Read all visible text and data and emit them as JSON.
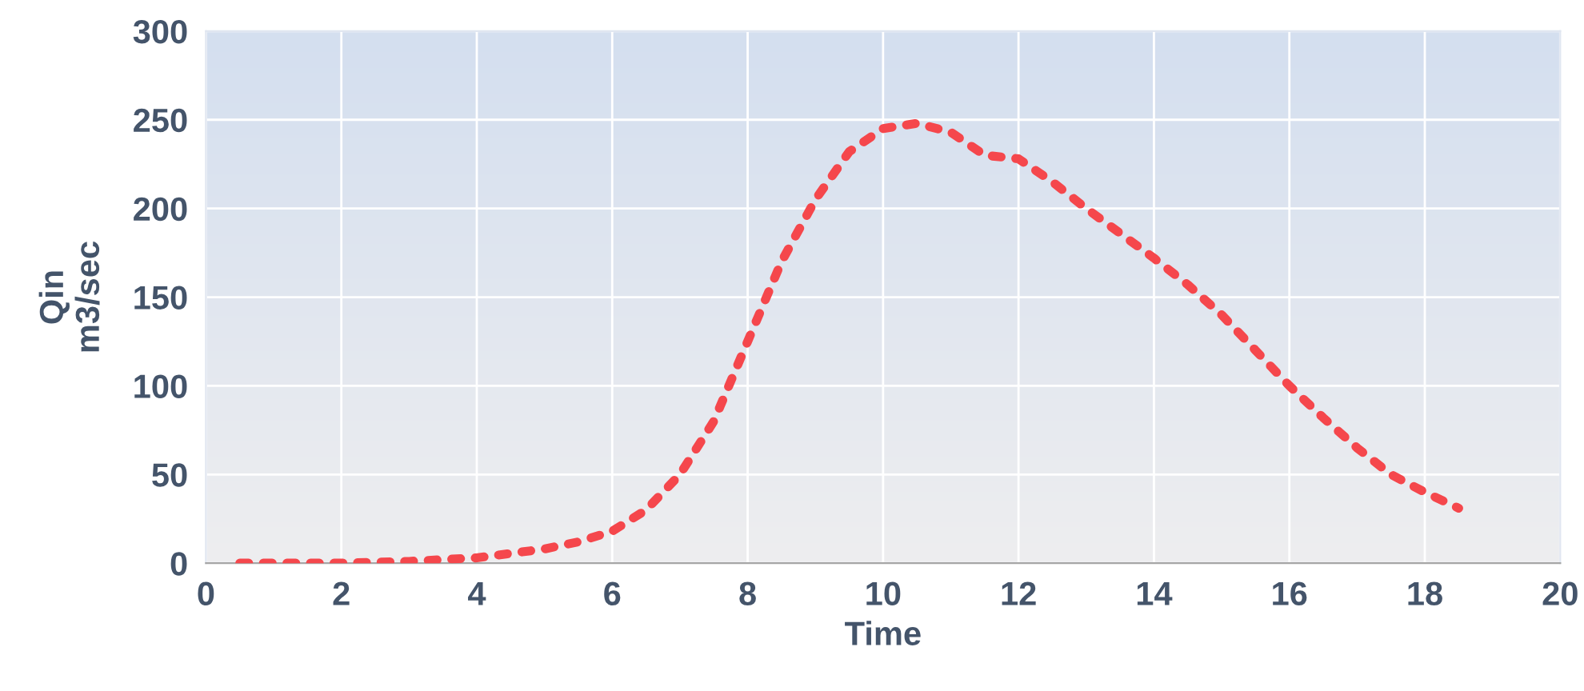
{
  "chart_data": {
    "type": "line",
    "xlabel": "Time",
    "ylabel": "Qin\nm3/sec",
    "xlim": [
      0,
      20
    ],
    "xticks": [
      0,
      2,
      4,
      6,
      8,
      10,
      12,
      14,
      16,
      18,
      20
    ],
    "ylim": [
      0,
      300
    ],
    "yticks": [
      0,
      50,
      100,
      150,
      200,
      250,
      300
    ],
    "grid": true,
    "line_style": "dotted",
    "marker": "none",
    "series": [
      {
        "color": "#f5474c",
        "x": [
          0.5,
          1,
          2,
          3,
          4,
          5,
          5.5,
          6,
          6.5,
          7,
          7.5,
          8,
          8.5,
          9,
          9.5,
          10,
          10.5,
          11,
          11.5,
          12,
          12.5,
          13,
          13.5,
          14,
          14.5,
          15,
          15.5,
          16,
          16.5,
          17,
          17.5,
          18,
          18.5
        ],
        "values": [
          0,
          0,
          0,
          1,
          3,
          8,
          12,
          18,
          30,
          50,
          80,
          125,
          170,
          205,
          232,
          245,
          248,
          243,
          230,
          228,
          215,
          200,
          186,
          172,
          157,
          140,
          120,
          100,
          82,
          65,
          50,
          40,
          31
        ]
      }
    ]
  }
}
